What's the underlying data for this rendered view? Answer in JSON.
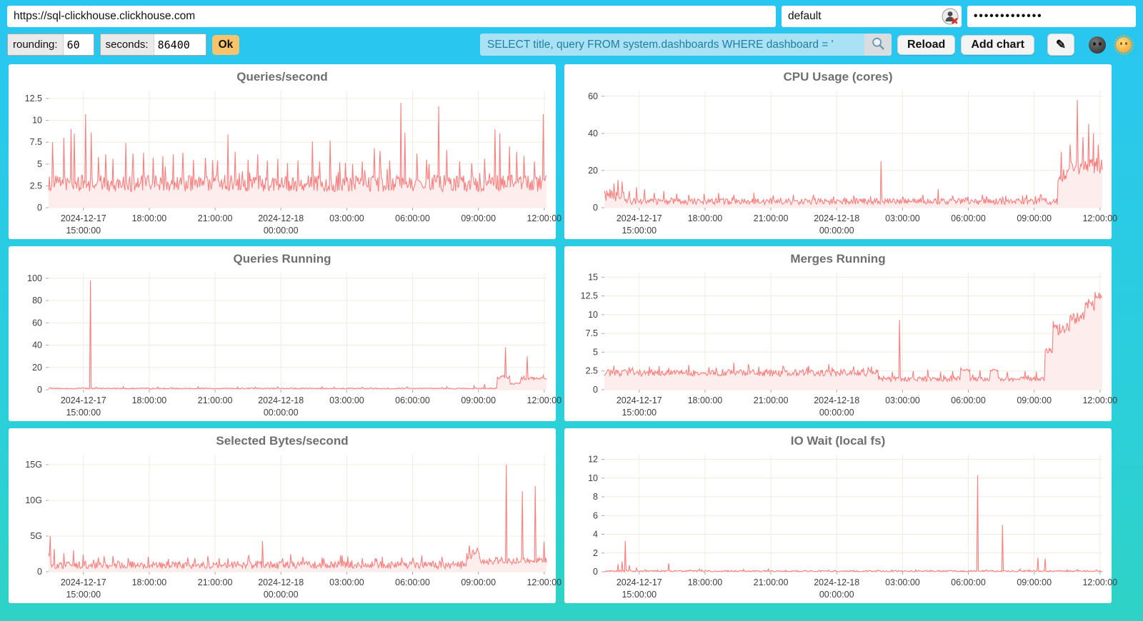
{
  "topbar": {
    "url_value": "https://sql-clickhouse.clickhouse.com",
    "user_value": "default",
    "password_value": "•••••••••••••",
    "password_manager_icon": "person-circle-with-red-x"
  },
  "toolbar": {
    "rounding_label": "rounding:",
    "rounding_value": "60",
    "seconds_label": "seconds:",
    "seconds_value": "86400",
    "ok_label": "Ok",
    "query_value": "SELECT title, query FROM system.dashboards WHERE dashboard = '",
    "search_icon": "magnifier",
    "reload_label": "Reload",
    "add_chart_label": "Add chart",
    "edit_icon": "✎",
    "dark_theme_icon": "new-moon-face",
    "light_theme_icon": "sun-with-face",
    "ok_color": "#f7c46c"
  },
  "chart_data": {
    "type": "line",
    "style": "area-line time series, 2x3 grid of panels",
    "line_color": "#f97f7f",
    "fill_color": "#fdeded",
    "grid_color": "#f0ece1",
    "x_ticks": [
      {
        "line1": "2024-12-17",
        "line2": "15:00:00"
      },
      {
        "line1": "18:00:00",
        "line2": ""
      },
      {
        "line1": "21:00:00",
        "line2": ""
      },
      {
        "line1": "2024-12-18",
        "line2": "00:00:00"
      },
      {
        "line1": "03:00:00",
        "line2": ""
      },
      {
        "line1": "06:00:00",
        "line2": ""
      },
      {
        "line1": "09:00:00",
        "line2": ""
      },
      {
        "line1": "12:00:00",
        "line2": ""
      }
    ],
    "segments_note": "[x0,x1,base,noise] x as fraction of time range 2024-12-17 ~13:00 to 2024-12-18 ~12:05",
    "spikes_note": "[x_fraction, value] notable peaks read from chart",
    "panels": [
      {
        "title": "Queries/second",
        "ytick_values": [
          0,
          2.5,
          5,
          7.5,
          10,
          12.5
        ],
        "ytick_labels": [
          "0",
          "2.5",
          "5",
          "7.5",
          "10",
          "12.5"
        ],
        "ymax": 13.4,
        "segments": [
          [
            0,
            1,
            2.7,
            0.95
          ]
        ],
        "spikes": [
          [
            0.008,
            7.5
          ],
          [
            0.03,
            8.0
          ],
          [
            0.045,
            9.0
          ],
          [
            0.052,
            8.5
          ],
          [
            0.075,
            10.7
          ],
          [
            0.085,
            8.6
          ],
          [
            0.1,
            5.8
          ],
          [
            0.115,
            6.1
          ],
          [
            0.13,
            5.6
          ],
          [
            0.155,
            7.4
          ],
          [
            0.17,
            6.2
          ],
          [
            0.19,
            6.3
          ],
          [
            0.21,
            5.7
          ],
          [
            0.23,
            5.9
          ],
          [
            0.25,
            6.1
          ],
          [
            0.27,
            6.3
          ],
          [
            0.29,
            5.5
          ],
          [
            0.315,
            5.7
          ],
          [
            0.34,
            5.4
          ],
          [
            0.36,
            8.4
          ],
          [
            0.375,
            6.4
          ],
          [
            0.4,
            5.5
          ],
          [
            0.42,
            6.1
          ],
          [
            0.44,
            5.4
          ],
          [
            0.46,
            5.6
          ],
          [
            0.48,
            5.1
          ],
          [
            0.5,
            5.4
          ],
          [
            0.53,
            7.6
          ],
          [
            0.545,
            5.3
          ],
          [
            0.565,
            7.7
          ],
          [
            0.585,
            5.2
          ],
          [
            0.61,
            5.0
          ],
          [
            0.63,
            5.3
          ],
          [
            0.655,
            6.8
          ],
          [
            0.665,
            6.5
          ],
          [
            0.685,
            5.4
          ],
          [
            0.707,
            12.0
          ],
          [
            0.715,
            8.6
          ],
          [
            0.74,
            6.2
          ],
          [
            0.76,
            5.5
          ],
          [
            0.783,
            11.6
          ],
          [
            0.8,
            6.6
          ],
          [
            0.825,
            5.3
          ],
          [
            0.85,
            5.1
          ],
          [
            0.875,
            5.6
          ],
          [
            0.897,
            9.0
          ],
          [
            0.907,
            8.5
          ],
          [
            0.925,
            7.0
          ],
          [
            0.94,
            6.4
          ],
          [
            0.955,
            5.9
          ],
          [
            0.975,
            5.3
          ],
          [
            0.993,
            10.7
          ]
        ]
      },
      {
        "title": "CPU Usage (cores)",
        "ytick_values": [
          0,
          20,
          40,
          60
        ],
        "ytick_labels": [
          "0",
          "20",
          "40",
          "60"
        ],
        "ymax": 63,
        "segments": [
          [
            0,
            0.04,
            6,
            3
          ],
          [
            0.04,
            0.91,
            3.2,
            1.7
          ],
          [
            0.91,
            0.928,
            16,
            3
          ],
          [
            0.928,
            1,
            22,
            4.5
          ]
        ],
        "spikes": [
          [
            0.012,
            10
          ],
          [
            0.02,
            13
          ],
          [
            0.028,
            15
          ],
          [
            0.036,
            14
          ],
          [
            0.05,
            9
          ],
          [
            0.065,
            11
          ],
          [
            0.08,
            10
          ],
          [
            0.1,
            8
          ],
          [
            0.12,
            9
          ],
          [
            0.145,
            7.5
          ],
          [
            0.17,
            7
          ],
          [
            0.2,
            7.5
          ],
          [
            0.23,
            8
          ],
          [
            0.26,
            7
          ],
          [
            0.3,
            8
          ],
          [
            0.34,
            6.5
          ],
          [
            0.38,
            7
          ],
          [
            0.42,
            7
          ],
          [
            0.46,
            6
          ],
          [
            0.5,
            6.5
          ],
          [
            0.555,
            25
          ],
          [
            0.6,
            6
          ],
          [
            0.64,
            7
          ],
          [
            0.67,
            10
          ],
          [
            0.7,
            6.5
          ],
          [
            0.73,
            6
          ],
          [
            0.76,
            7
          ],
          [
            0.8,
            6
          ],
          [
            0.84,
            6.5
          ],
          [
            0.875,
            7
          ],
          [
            0.918,
            30
          ],
          [
            0.935,
            34
          ],
          [
            0.95,
            58
          ],
          [
            0.962,
            38
          ],
          [
            0.972,
            45
          ],
          [
            0.982,
            40
          ],
          [
            0.992,
            34
          ]
        ]
      },
      {
        "title": "Queries Running",
        "ytick_values": [
          0,
          20,
          40,
          60,
          80,
          100
        ],
        "ytick_labels": [
          "0",
          "20",
          "40",
          "60",
          "80",
          "100"
        ],
        "ymax": 105,
        "segments": [
          [
            0,
            0.9,
            1.1,
            0.5
          ],
          [
            0.9,
            0.927,
            11,
            1.6
          ],
          [
            0.927,
            0.947,
            5.5,
            0.7
          ],
          [
            0.947,
            1,
            10,
            1.3
          ]
        ],
        "spikes": [
          [
            0.084,
            98
          ],
          [
            0.15,
            2.8
          ],
          [
            0.22,
            2.5
          ],
          [
            0.3,
            2.6
          ],
          [
            0.38,
            2.4
          ],
          [
            0.46,
            2.5
          ],
          [
            0.55,
            2.6
          ],
          [
            0.63,
            2.4
          ],
          [
            0.72,
            2.5
          ],
          [
            0.8,
            2.6
          ],
          [
            0.855,
            3.5
          ],
          [
            0.875,
            5.0
          ],
          [
            0.918,
            38
          ],
          [
            0.962,
            30
          ],
          [
            0.993,
            13
          ]
        ]
      },
      {
        "title": "Merges Running",
        "ytick_values": [
          0,
          2.5,
          5,
          7.5,
          10,
          12.5,
          15
        ],
        "ytick_labels": [
          "0",
          "2.5",
          "5",
          "7.5",
          "10",
          "12.5",
          "15"
        ],
        "ymax": 15.6,
        "segments": [
          [
            0,
            0.55,
            2.2,
            0.45
          ],
          [
            0.55,
            0.715,
            1.4,
            0.35
          ],
          [
            0.715,
            0.735,
            2.6,
            0.15
          ],
          [
            0.735,
            0.775,
            1.4,
            0.3
          ],
          [
            0.775,
            0.79,
            2.6,
            0.15
          ],
          [
            0.79,
            0.885,
            1.4,
            0.3
          ],
          [
            0.885,
            0.9,
            5.2,
            0.4
          ],
          [
            0.9,
            0.935,
            7.9,
            0.8
          ],
          [
            0.935,
            0.965,
            9.3,
            0.9
          ],
          [
            0.965,
            0.985,
            11.2,
            0.8
          ],
          [
            0.985,
            1,
            12.5,
            0.5
          ]
        ],
        "spikes": [
          [
            0.02,
            3.2
          ],
          [
            0.05,
            3.0
          ],
          [
            0.09,
            3.1
          ],
          [
            0.13,
            2.9
          ],
          [
            0.17,
            3.3
          ],
          [
            0.21,
            3.0
          ],
          [
            0.26,
            3.6
          ],
          [
            0.31,
            3.1
          ],
          [
            0.36,
            3.0
          ],
          [
            0.41,
            3.2
          ],
          [
            0.45,
            3.4
          ],
          [
            0.5,
            3.1
          ],
          [
            0.53,
            3.0
          ],
          [
            0.578,
            2.4
          ],
          [
            0.593,
            9.3
          ],
          [
            0.62,
            2.5
          ],
          [
            0.65,
            2.7
          ],
          [
            0.675,
            2.4
          ],
          [
            0.7,
            2.5
          ],
          [
            0.755,
            2.6
          ],
          [
            0.81,
            2.4
          ],
          [
            0.845,
            2.5
          ],
          [
            0.868,
            2.4
          ]
        ]
      },
      {
        "title": "Selected Bytes/second",
        "ytick_values": [
          0,
          5,
          10,
          15
        ],
        "ytick_labels": [
          "0",
          "5G",
          "10G",
          "15G"
        ],
        "ymax": 16.4,
        "segments": [
          [
            0,
            0.006,
            2.2,
            1.2
          ],
          [
            0.006,
            0.84,
            0.9,
            0.55
          ],
          [
            0.84,
            0.865,
            2.3,
            0.7
          ],
          [
            0.865,
            1,
            1.5,
            0.5
          ]
        ],
        "spikes": [
          [
            0.004,
            5.0
          ],
          [
            0.012,
            3.2
          ],
          [
            0.03,
            2.6
          ],
          [
            0.05,
            3.0
          ],
          [
            0.07,
            2.4
          ],
          [
            0.1,
            2.0
          ],
          [
            0.13,
            2.2
          ],
          [
            0.16,
            1.9
          ],
          [
            0.2,
            2.1
          ],
          [
            0.24,
            1.8
          ],
          [
            0.28,
            2.0
          ],
          [
            0.32,
            2.2
          ],
          [
            0.36,
            1.9
          ],
          [
            0.4,
            2.0
          ],
          [
            0.43,
            4.3
          ],
          [
            0.47,
            1.9
          ],
          [
            0.51,
            2.1
          ],
          [
            0.55,
            2.0
          ],
          [
            0.59,
            2.3
          ],
          [
            0.63,
            1.9
          ],
          [
            0.67,
            2.1
          ],
          [
            0.71,
            2.0
          ],
          [
            0.75,
            2.3
          ],
          [
            0.79,
            2.1
          ],
          [
            0.845,
            3.7
          ],
          [
            0.86,
            3.0
          ],
          [
            0.92,
            15.0
          ],
          [
            0.951,
            11.3
          ],
          [
            0.978,
            12.0
          ],
          [
            0.995,
            4.2
          ]
        ]
      },
      {
        "title": "IO Wait (local fs)",
        "ytick_values": [
          0,
          2,
          4,
          6,
          8,
          10,
          12
        ],
        "ytick_labels": [
          "0",
          "2",
          "4",
          "6",
          "8",
          "10",
          "12"
        ],
        "ymax": 12.5,
        "segments": [
          [
            0,
            1,
            0.06,
            0.08
          ]
        ],
        "spikes": [
          [
            0.028,
            0.8
          ],
          [
            0.035,
            1.1
          ],
          [
            0.042,
            3.3
          ],
          [
            0.05,
            0.7
          ],
          [
            0.065,
            0.4
          ],
          [
            0.13,
            0.9
          ],
          [
            0.19,
            0.3
          ],
          [
            0.28,
            0.25
          ],
          [
            0.33,
            0.3
          ],
          [
            0.45,
            0.2
          ],
          [
            0.55,
            0.2
          ],
          [
            0.75,
            10.3
          ],
          [
            0.8,
            5.0
          ],
          [
            0.835,
            0.3
          ],
          [
            0.87,
            1.5
          ],
          [
            0.885,
            1.4
          ],
          [
            0.95,
            0.25
          ]
        ]
      }
    ]
  }
}
